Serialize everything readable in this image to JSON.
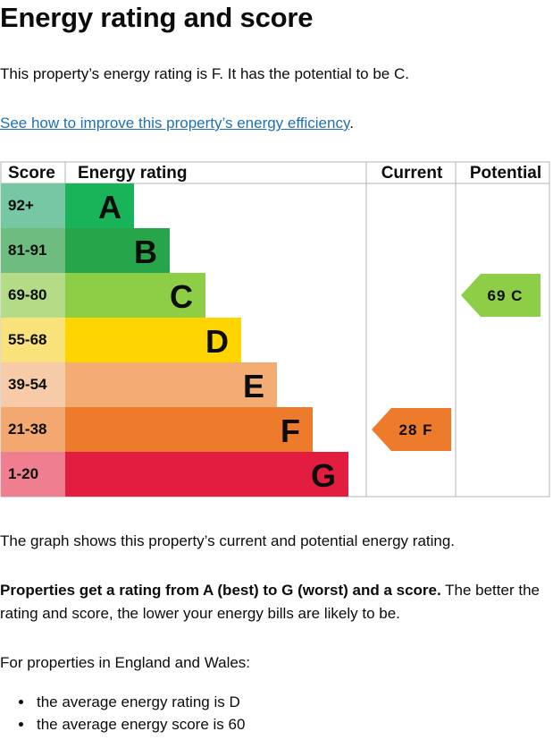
{
  "page": {
    "title": "Energy rating and score",
    "rating_sentence": "This property’s energy rating is F. It has the potential to be C.",
    "improve_link": "See how to improve this property’s energy efficiency",
    "link_trailing": ".",
    "graph_caption": "The graph shows this property’s current and potential energy rating.",
    "ratings_bold": "Properties get a rating from A (best) to G (worst) and a score.",
    "ratings_rest": " The better the rating and score, the lower your energy bills are likely to be.",
    "region_intro": "For properties in England and Wales:",
    "bullets": [
      "the average energy rating is D",
      "the average energy score is 60"
    ]
  },
  "chart_data": {
    "type": "bar",
    "columns": [
      "Score",
      "Energy rating",
      "Current",
      "Potential"
    ],
    "bands": [
      {
        "letter": "A",
        "score": "92+",
        "color": "#19b459",
        "score_bg": "#76c7a3"
      },
      {
        "letter": "B",
        "score": "81-91",
        "color": "#27a54a",
        "score_bg": "#6ebc7f"
      },
      {
        "letter": "C",
        "score": "69-80",
        "color": "#8dce46",
        "score_bg": "#b4dc86"
      },
      {
        "letter": "D",
        "score": "55-68",
        "color": "#ffd500",
        "score_bg": "#f9e27a"
      },
      {
        "letter": "E",
        "score": "39-54",
        "color": "#f4ac75",
        "score_bg": "#f7cba7"
      },
      {
        "letter": "F",
        "score": "21-38",
        "color": "#ee7b2b",
        "score_bg": "#f2a86e"
      },
      {
        "letter": "G",
        "score": "1-20",
        "color": "#e31d40",
        "score_bg": "#ef7e91"
      }
    ],
    "current": {
      "score": 28,
      "letter": "F",
      "label": "28 F",
      "color": "#ee7b2b"
    },
    "potential": {
      "score": 69,
      "letter": "C",
      "label": "69 C",
      "color": "#8dce46"
    }
  }
}
